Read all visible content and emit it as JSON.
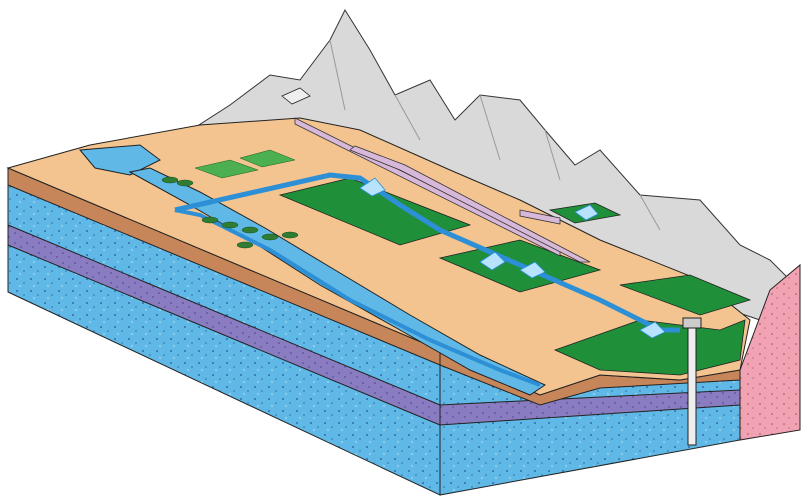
{
  "diagram": {
    "type": "block-diagram",
    "subject": "",
    "colors": {
      "aquifer": "#5fb8e6",
      "aquifer_dots": "#2f6fa8",
      "aquitard": "#8a7cc0",
      "soil": "#c7865a",
      "ground_surface": "#f3c48f",
      "mountains": "#d9d9d9",
      "bedrock": "#f2a3b3",
      "irrigated_field": "#1f8f3a",
      "canal_water": "#2d8fd5",
      "pipeline": "#d8b8d8",
      "crop_plots": "#4caf50"
    },
    "elements": [
      "mountain-range",
      "reservoir",
      "supply-canal",
      "river-channel",
      "pipeline",
      "irrigated-fields",
      "center-pivot-sprinklers",
      "well-casing",
      "aquifer-layers",
      "confining-layers",
      "bedrock-block",
      "trees",
      "crop-plots",
      "pumping-station"
    ]
  }
}
